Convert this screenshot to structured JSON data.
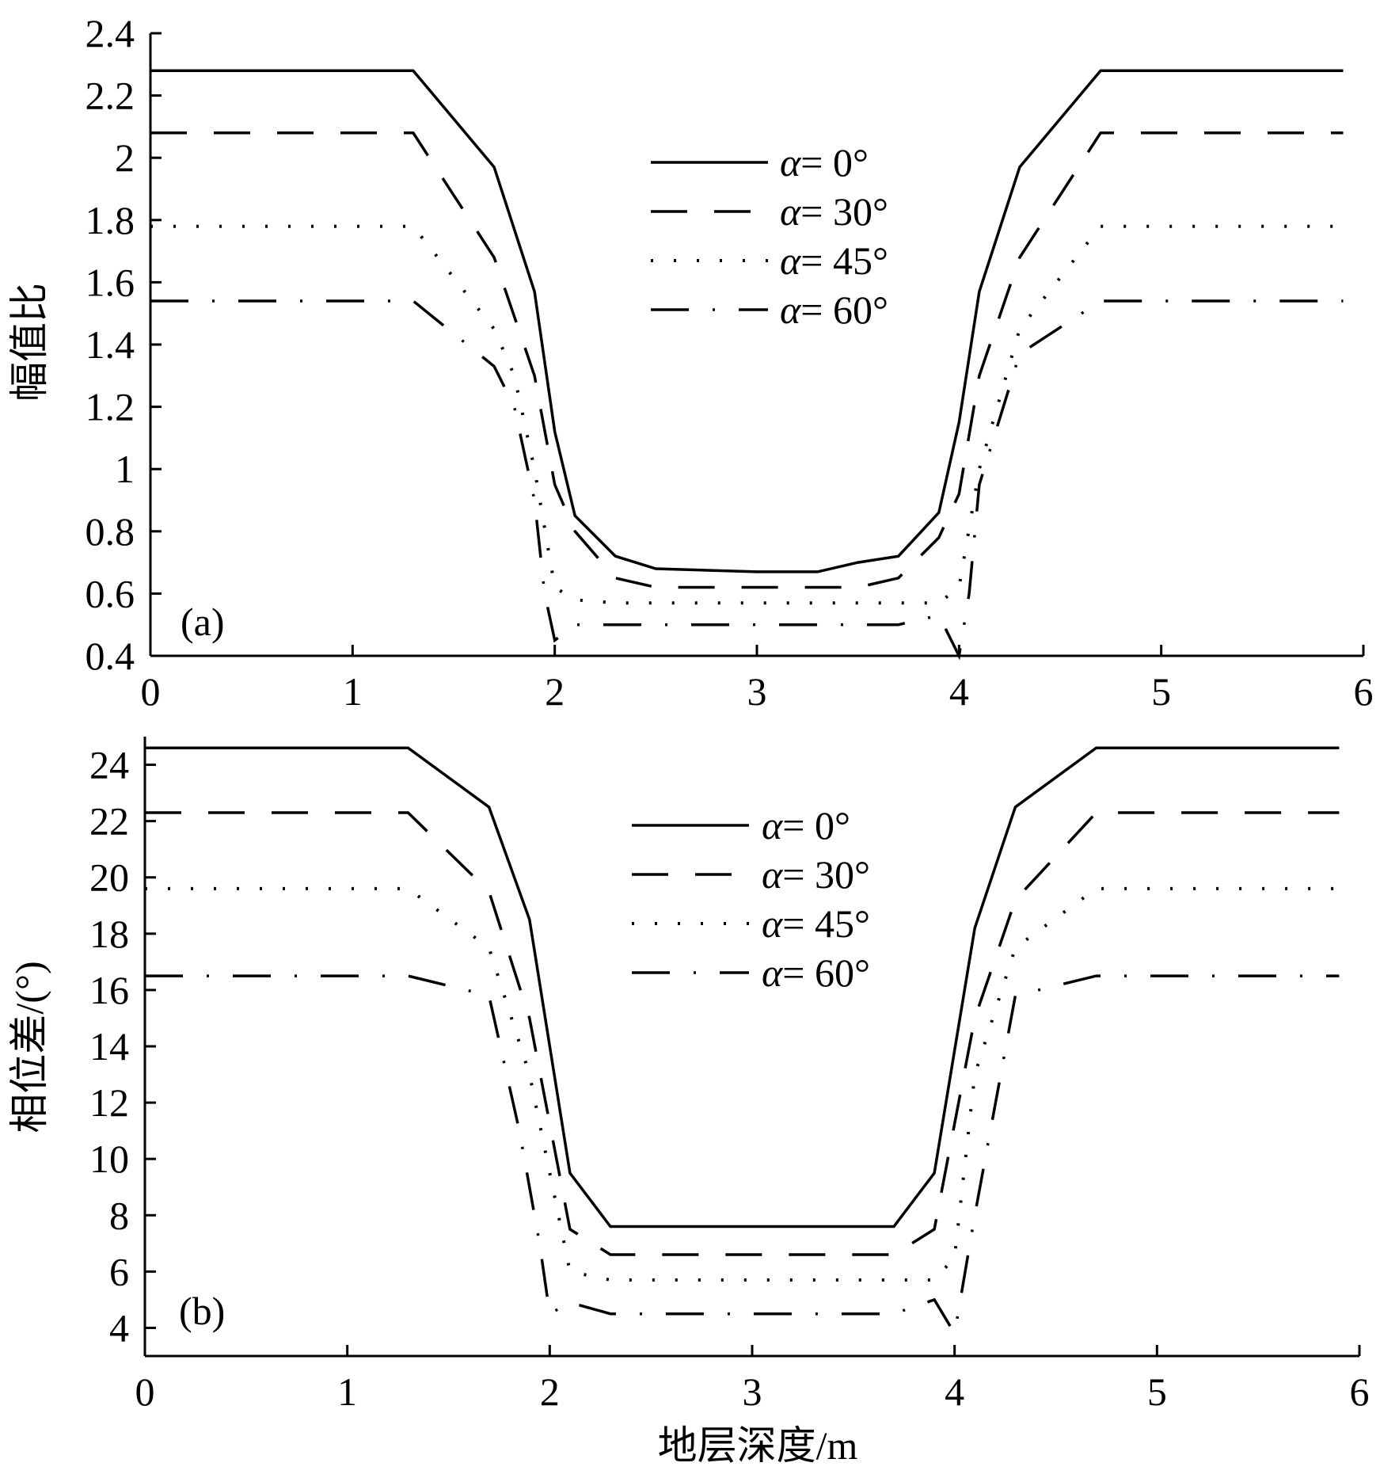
{
  "figure": {
    "xlabel": "地层深度/m"
  },
  "chart_data": [
    {
      "type": "line",
      "panel_label": "(a)",
      "ylabel": "幅值比",
      "xlim": [
        0,
        6
      ],
      "ylim": [
        0.4,
        2.4
      ],
      "x_ticks": [
        "0",
        "1",
        "2",
        "3",
        "4",
        "5",
        "6"
      ],
      "y_ticks": [
        "0.4",
        "0.6",
        "0.8",
        "1",
        "1.2",
        "1.4",
        "1.6",
        "1.8",
        "2",
        "2.2",
        "2.4"
      ],
      "grid": false,
      "legend_position": "upper-center",
      "series": [
        {
          "name": "α= 0°",
          "dash": "solid",
          "x": [
            0,
            1.3,
            1.7,
            1.9,
            2.0,
            2.1,
            2.3,
            2.5,
            3.0,
            3.3,
            3.5,
            3.7,
            3.9,
            4.0,
            4.1,
            4.3,
            4.7,
            5.9
          ],
          "y": [
            2.28,
            2.28,
            1.97,
            1.57,
            1.12,
            0.85,
            0.72,
            0.68,
            0.67,
            0.67,
            0.7,
            0.72,
            0.86,
            1.15,
            1.57,
            1.97,
            2.28,
            2.28
          ]
        },
        {
          "name": "α= 30°",
          "dash": "dash",
          "x": [
            0,
            1.3,
            1.7,
            1.9,
            2.0,
            2.1,
            2.3,
            2.5,
            3.0,
            3.5,
            3.7,
            3.9,
            4.0,
            4.1,
            4.3,
            4.7,
            5.9
          ],
          "y": [
            2.08,
            2.08,
            1.68,
            1.3,
            0.95,
            0.8,
            0.65,
            0.62,
            0.62,
            0.62,
            0.65,
            0.78,
            0.92,
            1.3,
            1.68,
            2.08,
            2.08
          ]
        },
        {
          "name": "α= 45°",
          "dash": "dot",
          "x": [
            0,
            1.3,
            1.7,
            1.8,
            1.9,
            2.0,
            2.1,
            2.3,
            2.5,
            3.0,
            3.5,
            3.7,
            3.9,
            4.0,
            4.1,
            4.3,
            4.7,
            5.9
          ],
          "y": [
            1.78,
            1.78,
            1.45,
            1.3,
            1.0,
            0.62,
            0.58,
            0.57,
            0.57,
            0.57,
            0.57,
            0.57,
            0.57,
            0.62,
            1.0,
            1.45,
            1.78,
            1.78
          ]
        },
        {
          "name": "α= 60°",
          "dash": "dashdot",
          "x": [
            0,
            1.3,
            1.7,
            1.8,
            1.9,
            1.95,
            2.0,
            2.1,
            2.3,
            2.5,
            3.0,
            3.5,
            3.7,
            3.9,
            4.0,
            4.05,
            4.1,
            4.3,
            4.7,
            5.9
          ],
          "y": [
            1.54,
            1.54,
            1.33,
            1.2,
            0.9,
            0.6,
            0.45,
            0.5,
            0.5,
            0.5,
            0.5,
            0.5,
            0.5,
            0.53,
            0.4,
            0.6,
            0.95,
            1.37,
            1.54,
            1.54
          ]
        }
      ]
    },
    {
      "type": "line",
      "panel_label": "(b)",
      "ylabel": "相位差/(°)",
      "xlim": [
        0,
        6
      ],
      "ylim": [
        3,
        25
      ],
      "x_ticks": [
        "0",
        "1",
        "2",
        "3",
        "4",
        "5",
        "6"
      ],
      "y_ticks": [
        "4",
        "6",
        "8",
        "10",
        "12",
        "14",
        "16",
        "18",
        "20",
        "22",
        "24"
      ],
      "grid": false,
      "legend_position": "upper-center",
      "series": [
        {
          "name": "α= 0°",
          "dash": "solid",
          "x": [
            0,
            1.3,
            1.7,
            1.9,
            2.1,
            2.3,
            3.0,
            3.7,
            3.9,
            4.1,
            4.3,
            4.7,
            5.9
          ],
          "y": [
            24.6,
            24.6,
            22.5,
            18.5,
            9.5,
            7.6,
            7.6,
            7.6,
            9.5,
            18.2,
            22.5,
            24.6,
            24.6
          ]
        },
        {
          "name": "α= 30°",
          "dash": "dash",
          "x": [
            0,
            1.3,
            1.7,
            1.9,
            2.1,
            2.3,
            3.0,
            3.7,
            3.9,
            4.1,
            4.3,
            4.7,
            5.9
          ],
          "y": [
            22.3,
            22.3,
            19.5,
            15.0,
            7.5,
            6.6,
            6.6,
            6.6,
            7.5,
            15.0,
            19.2,
            22.3,
            22.3
          ]
        },
        {
          "name": "α= 45°",
          "dash": "dot",
          "x": [
            0,
            1.3,
            1.7,
            1.9,
            2.1,
            2.3,
            3.0,
            3.7,
            3.9,
            4.0,
            4.1,
            4.3,
            4.7,
            5.9
          ],
          "y": [
            19.6,
            19.6,
            17.5,
            13.0,
            6.0,
            5.7,
            5.7,
            5.7,
            5.7,
            6.5,
            13.0,
            17.5,
            19.6,
            19.6
          ]
        },
        {
          "name": "α= 60°",
          "dash": "dashdot",
          "x": [
            0,
            1.3,
            1.7,
            1.85,
            1.95,
            2.0,
            2.1,
            2.3,
            3.0,
            3.7,
            3.9,
            4.0,
            4.1,
            4.3,
            4.7,
            5.9
          ],
          "y": [
            16.5,
            16.5,
            15.8,
            11.0,
            7.0,
            4.5,
            4.9,
            4.5,
            4.5,
            4.5,
            5.0,
            3.8,
            8.0,
            15.8,
            16.5,
            16.5
          ]
        }
      ]
    }
  ]
}
